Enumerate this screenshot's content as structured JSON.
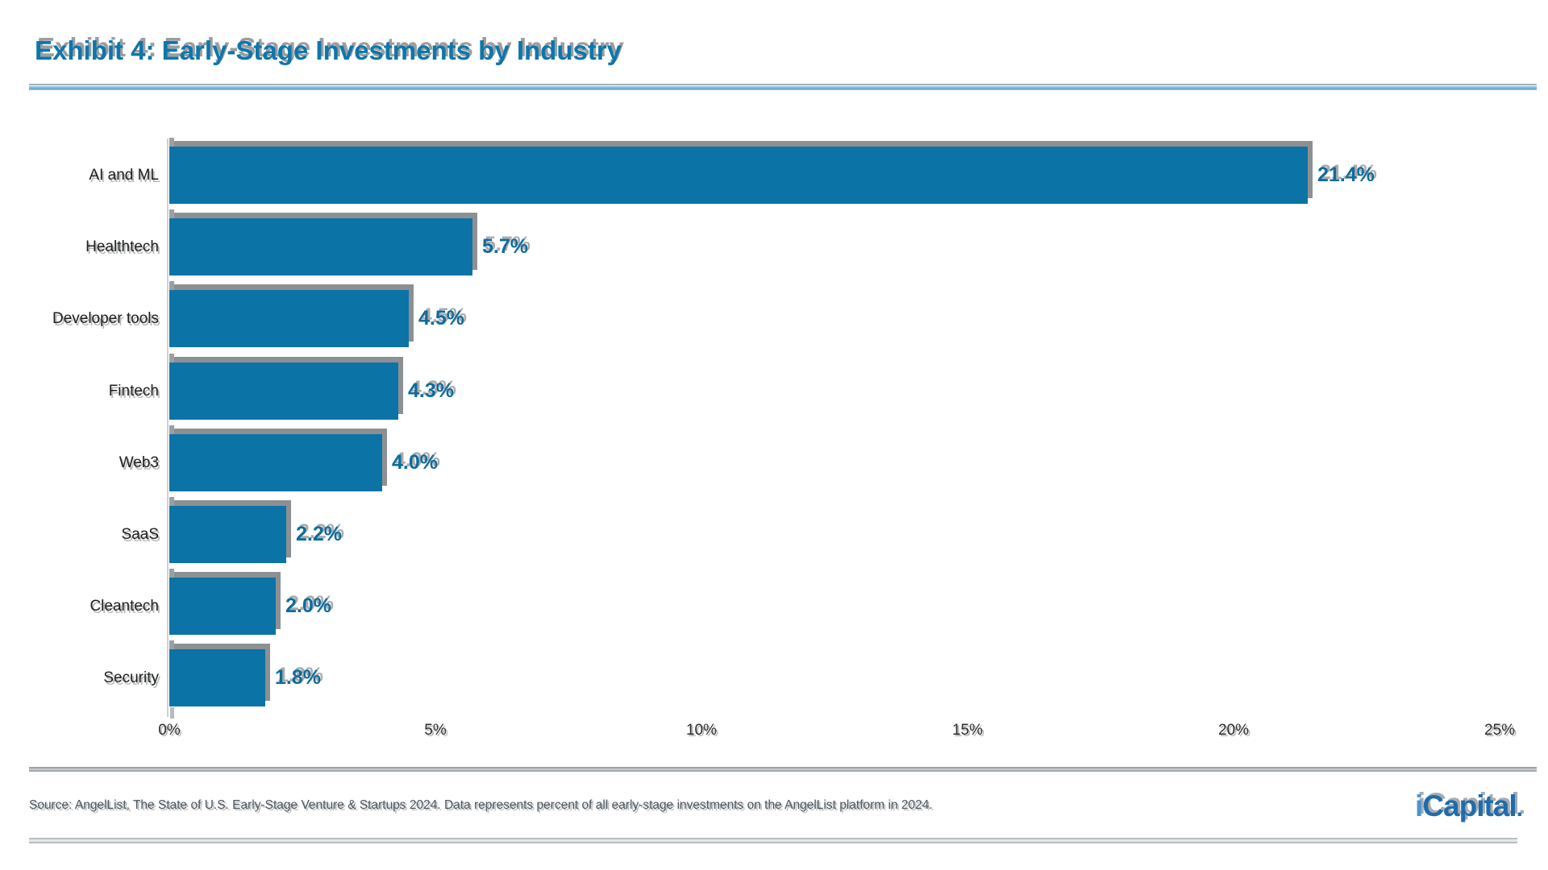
{
  "page": {
    "title": "Exhibit 4: Early-Stage Investments by Industry",
    "source_note": "Source: AngelList, The State of U.S. Early-Stage Venture & Startups 2024. Data represents percent of all early-stage investments on the AngelList platform in 2024.",
    "logo": {
      "prefix": "i",
      "rest": "Capital",
      "dot": "."
    }
  },
  "colors": {
    "bar": "#0b73a6",
    "bar_shadow": "#8d9093",
    "value_label": "#0f6b9c",
    "title": "#0e76ab",
    "logo_main": "#1e6cae",
    "logo_i": "#4a94cc"
  },
  "chart_data": {
    "type": "bar",
    "orientation": "horizontal",
    "title": "Exhibit 4: Early-Stage Investments by Industry",
    "categories": [
      "AI and ML",
      "Healthtech",
      "Developer tools",
      "Fintech",
      "Web3",
      "SaaS",
      "Cleantech",
      "Security"
    ],
    "values": [
      21.4,
      5.7,
      4.5,
      4.3,
      4.0,
      2.2,
      2.0,
      1.8
    ],
    "value_labels": [
      "21.4%",
      "5.7%",
      "4.5%",
      "4.3%",
      "4.0%",
      "2.2%",
      "2.0%",
      "1.8%"
    ],
    "value_label_position": "outside-end",
    "xlabel": "",
    "ylabel": "",
    "xlim": [
      0,
      25
    ],
    "x_tick_values": [
      0,
      5,
      10,
      15,
      20,
      25
    ],
    "x_tick_labels": [
      "0%",
      "5%",
      "10%",
      "15%",
      "20%",
      "25%"
    ],
    "grid": false,
    "legend": false
  }
}
